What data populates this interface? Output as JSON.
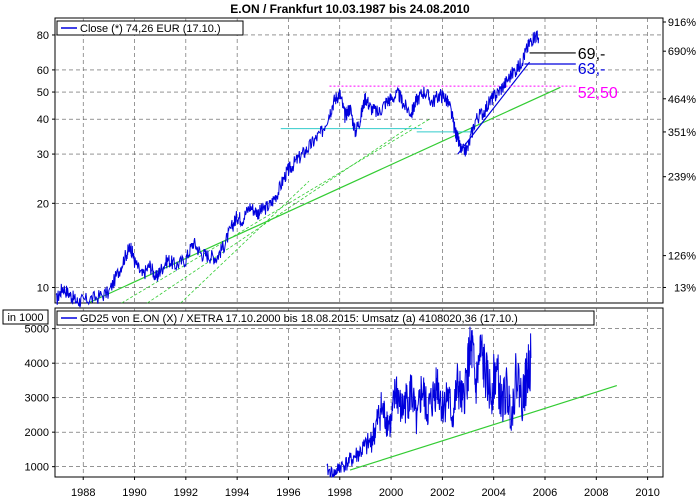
{
  "title": "E.ON / Frankfurt 10.03.1987 bis 24.08.2010",
  "x_axis": {
    "ticks": [
      "1988",
      "1990",
      "1992",
      "1994",
      "1996",
      "1998",
      "2000",
      "2002",
      "2004",
      "2006",
      "2008",
      "2010"
    ],
    "min": 1986.9,
    "max": 2010.6
  },
  "colors": {
    "price": "#0000dd",
    "trend": "#33cc33",
    "magenta": "#ff00ff",
    "cyan": "#33cccc",
    "text": "#000000"
  },
  "chart_data": [
    {
      "type": "line",
      "title": "E.ON / Frankfurt 10.03.1987 bis 24.08.2010",
      "legend": "Close (*) 74,26 EUR (17.10.)",
      "legend_position": "top-left",
      "y_scale": "log",
      "ylim": [
        8.8,
        92
      ],
      "y_ticks_left": [
        10,
        20,
        30,
        40,
        50,
        60,
        80
      ],
      "y_ticks_right": [
        "916%",
        "690%",
        "464%",
        "351%",
        "239%",
        "126%",
        "13%"
      ],
      "y_ticks_right_values": [
        92,
        70,
        47.3,
        36.0,
        24.9,
        13.0,
        10.0
      ],
      "grid": true,
      "series": [
        {
          "values_x": [
            1986.95,
            1987.2,
            1987.5,
            1987.75,
            1988.0,
            1988.5,
            1989.0,
            1989.4,
            1989.7,
            1989.85,
            1990.0,
            1990.3,
            1990.6,
            1990.85,
            1991.0,
            1991.3,
            1991.6,
            1992.0,
            1992.3,
            1992.6,
            1992.9,
            1993.2,
            1993.5,
            1993.8,
            1994.0,
            1994.2,
            1994.5,
            1994.8,
            1995.0,
            1995.3,
            1995.6,
            1995.9,
            1996.1,
            1996.4,
            1996.7,
            1997.0,
            1997.3,
            1997.6,
            1997.8,
            1998.0,
            1998.2,
            1998.4,
            1998.6,
            1998.8,
            1999.0,
            1999.2,
            1999.5,
            1999.8,
            2000.0,
            2000.3,
            2000.5,
            2000.8,
            2001.0,
            2001.3,
            2001.6,
            2001.9,
            2002.1,
            2002.3,
            2002.5,
            2002.6,
            2002.75,
            2003.0,
            2003.3,
            2003.6,
            2003.9,
            2004.1,
            2004.4,
            2004.7,
            2005.0,
            2005.2,
            2005.4,
            2005.6,
            2005.75
          ],
          "values_y": [
            9.0,
            10.0,
            9.4,
            8.9,
            9.0,
            9.2,
            9.6,
            11.5,
            13.3,
            14.0,
            12.4,
            11.0,
            12.0,
            10.8,
            11.5,
            12.6,
            12.0,
            12.6,
            14.5,
            13.2,
            13.0,
            12.8,
            14.2,
            16.5,
            18.0,
            17.5,
            19.5,
            18.5,
            19.0,
            19.8,
            22.0,
            25.5,
            27.0,
            29.0,
            31.0,
            33.5,
            36.0,
            42.0,
            47.0,
            49.5,
            41.0,
            44.0,
            36.0,
            40.0,
            48.0,
            44.0,
            42.0,
            46.0,
            47.5,
            49.0,
            45.0,
            42.0,
            47.0,
            50.5,
            46.0,
            49.0,
            48.0,
            44.0,
            36.0,
            34.0,
            30.5,
            31.5,
            40.0,
            42.5,
            47.0,
            49.0,
            53.0,
            58.0,
            62.0,
            68.0,
            75.0,
            80.0,
            78.0
          ]
        }
      ],
      "lines": [
        {
          "label": "69,-",
          "value": 69,
          "color": "#000000",
          "x_from": 2005.4,
          "x_to": 2007.2
        },
        {
          "label": "63,-",
          "value": 63,
          "color": "#0000dd",
          "x_from": 2005.2,
          "x_to": 2007.2
        },
        {
          "label": "52,50",
          "value": 52.5,
          "color": "#ff00ff",
          "x_from": 1997.6,
          "x_to": 2007.2,
          "dashed": true
        }
      ],
      "cyan_lines": [
        {
          "value": 37,
          "x_from": 1995.7,
          "x_to": 2001.2
        },
        {
          "value": 36,
          "x_from": 2001.0,
          "x_to": 2003.2
        }
      ],
      "trendlines": [
        {
          "x1": 1988.2,
          "y1": 8.8,
          "x2": 2006.6,
          "y2": 52,
          "dashed": false
        },
        {
          "x1": 1989.5,
          "y1": 8.8,
          "x2": 2001.5,
          "y2": 40,
          "dashed": true
        },
        {
          "x1": 1990.5,
          "y1": 8.8,
          "x2": 2000.8,
          "y2": 38,
          "dashed": true
        },
        {
          "x1": 1991.8,
          "y1": 8.8,
          "x2": 1996.8,
          "y2": 24,
          "dashed": true
        },
        {
          "x1": 2002.6,
          "y1": 30.0,
          "x2": 2005.4,
          "y2": 64,
          "dashed": false,
          "color": "#0000dd"
        }
      ]
    },
    {
      "type": "line",
      "unit_label": "in 1000",
      "legend": "GD25 von E.ON (X) / XETRA 17.10.2000 bis 18.08.2015: Umsatz (a) 4108020,36 (17.10.)",
      "legend_position": "top-left",
      "ylim": [
        700,
        5600
      ],
      "y_ticks": [
        1000,
        2000,
        3000,
        4000,
        5000
      ],
      "grid": true,
      "series": [
        {
          "values_x": [
            1997.5,
            1997.8,
            1998.0,
            1998.3,
            1998.6,
            1998.9,
            1999.2,
            1999.4,
            1999.6,
            1999.8,
            2000.0,
            2000.2,
            2000.4,
            2000.6,
            2000.8,
            2001.0,
            2001.2,
            2001.4,
            2001.6,
            2001.8,
            2002.0,
            2002.2,
            2002.4,
            2002.6,
            2002.8,
            2003.0,
            2003.15,
            2003.3,
            2003.5,
            2003.7,
            2003.9,
            2004.1,
            2004.3,
            2004.5,
            2004.7,
            2004.9,
            2005.1,
            2005.3,
            2005.45
          ],
          "values_y": [
            900,
            800,
            1000,
            1100,
            1300,
            1500,
            1700,
            2100,
            2700,
            2400,
            2200,
            3300,
            2600,
            2900,
            3200,
            2200,
            3300,
            2600,
            2900,
            3500,
            2700,
            3100,
            2400,
            3400,
            2800,
            3900,
            4400,
            3300,
            4300,
            3600,
            3100,
            3900,
            2800,
            3200,
            2500,
            3800,
            2900,
            3600,
            4150
          ]
        }
      ],
      "trendlines": [
        {
          "x1": 1998.4,
          "y1": 900,
          "x2": 2008.8,
          "y2": 3350
        }
      ]
    }
  ]
}
